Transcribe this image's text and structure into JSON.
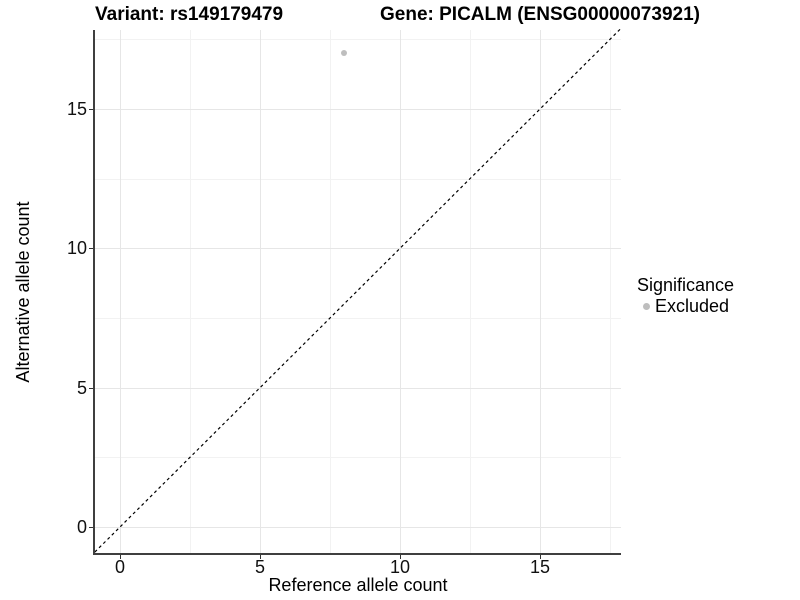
{
  "header": {
    "title_left": "Variant: rs149179479",
    "title_right": "Gene: PICALM (ENSG00000073921)"
  },
  "chart_data": {
    "type": "scatter",
    "title": "Variant: rs149179479   |   Gene: PICALM (ENSG00000073921)",
    "xlabel": "Reference allele count",
    "ylabel": "Alternative allele count",
    "x_ticks": [
      0,
      5,
      10,
      15
    ],
    "y_ticks": [
      0,
      5,
      10,
      15
    ],
    "x_minor_ticks": [
      2.5,
      7.5,
      12.5,
      17.5
    ],
    "y_minor_ticks": [
      2.5,
      7.5,
      12.5,
      17.5
    ],
    "xlim": [
      -0.9,
      17.9
    ],
    "ylim": [
      -0.9,
      17.9
    ],
    "grid": true,
    "points": [
      {
        "x": 8,
        "y": 17,
        "series": "Excluded"
      }
    ],
    "reference_line": {
      "slope": 1,
      "intercept": 0,
      "style": "dashed"
    },
    "legend": {
      "title": "Significance",
      "position": "right",
      "items": [
        {
          "label": "Excluded",
          "color": "#bebebe"
        }
      ]
    }
  },
  "colors": {
    "point": "#bebebe",
    "grid_major": "#e6e6e6",
    "grid_minor": "#f2f2f2",
    "axis_line": "#3f3f3f",
    "reference_line": "#000000",
    "background": "#ffffff"
  }
}
